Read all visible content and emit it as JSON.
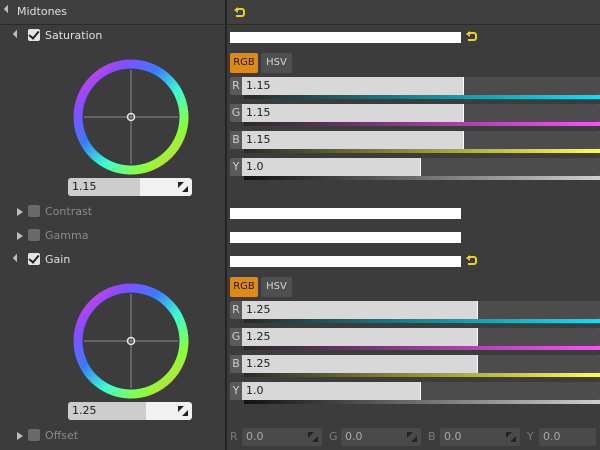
{
  "section": {
    "title": "Midtones"
  },
  "saturation": {
    "label": "Saturation",
    "wheel_value": "1.15",
    "wheel_fill": 0.58,
    "tabs": [
      "RGB",
      "HSV"
    ],
    "channels": [
      {
        "letter": "R",
        "value": "1.15",
        "fill": 0.62,
        "gradient": "cyan"
      },
      {
        "letter": "G",
        "value": "1.15",
        "fill": 0.62,
        "gradient": "magenta"
      },
      {
        "letter": "B",
        "value": "1.15",
        "fill": 0.62,
        "gradient": "yellow"
      },
      {
        "letter": "Y",
        "value": "1.0",
        "fill": 0.5,
        "gradient": "gray"
      }
    ]
  },
  "contrast": {
    "label": "Contrast"
  },
  "gamma": {
    "label": "Gamma"
  },
  "gain": {
    "label": "Gain",
    "wheel_value": "1.25",
    "wheel_fill": 0.62,
    "tabs": [
      "RGB",
      "HSV"
    ],
    "channels": [
      {
        "letter": "R",
        "value": "1.25",
        "fill": 0.66,
        "gradient": "cyan"
      },
      {
        "letter": "G",
        "value": "1.25",
        "fill": 0.66,
        "gradient": "magenta"
      },
      {
        "letter": "B",
        "value": "1.25",
        "fill": 0.66,
        "gradient": "yellow"
      },
      {
        "letter": "Y",
        "value": "1.0",
        "fill": 0.5,
        "gradient": "gray"
      }
    ]
  },
  "offset": {
    "label": "Offset",
    "fields": [
      {
        "letter": "R",
        "value": "0.0"
      },
      {
        "letter": "G",
        "value": "0.0"
      },
      {
        "letter": "B",
        "value": "0.0"
      },
      {
        "letter": "Y",
        "value": "0.0"
      }
    ]
  },
  "colors": {
    "accent": "#e08a16",
    "reset_icon": "#e8d21c"
  }
}
